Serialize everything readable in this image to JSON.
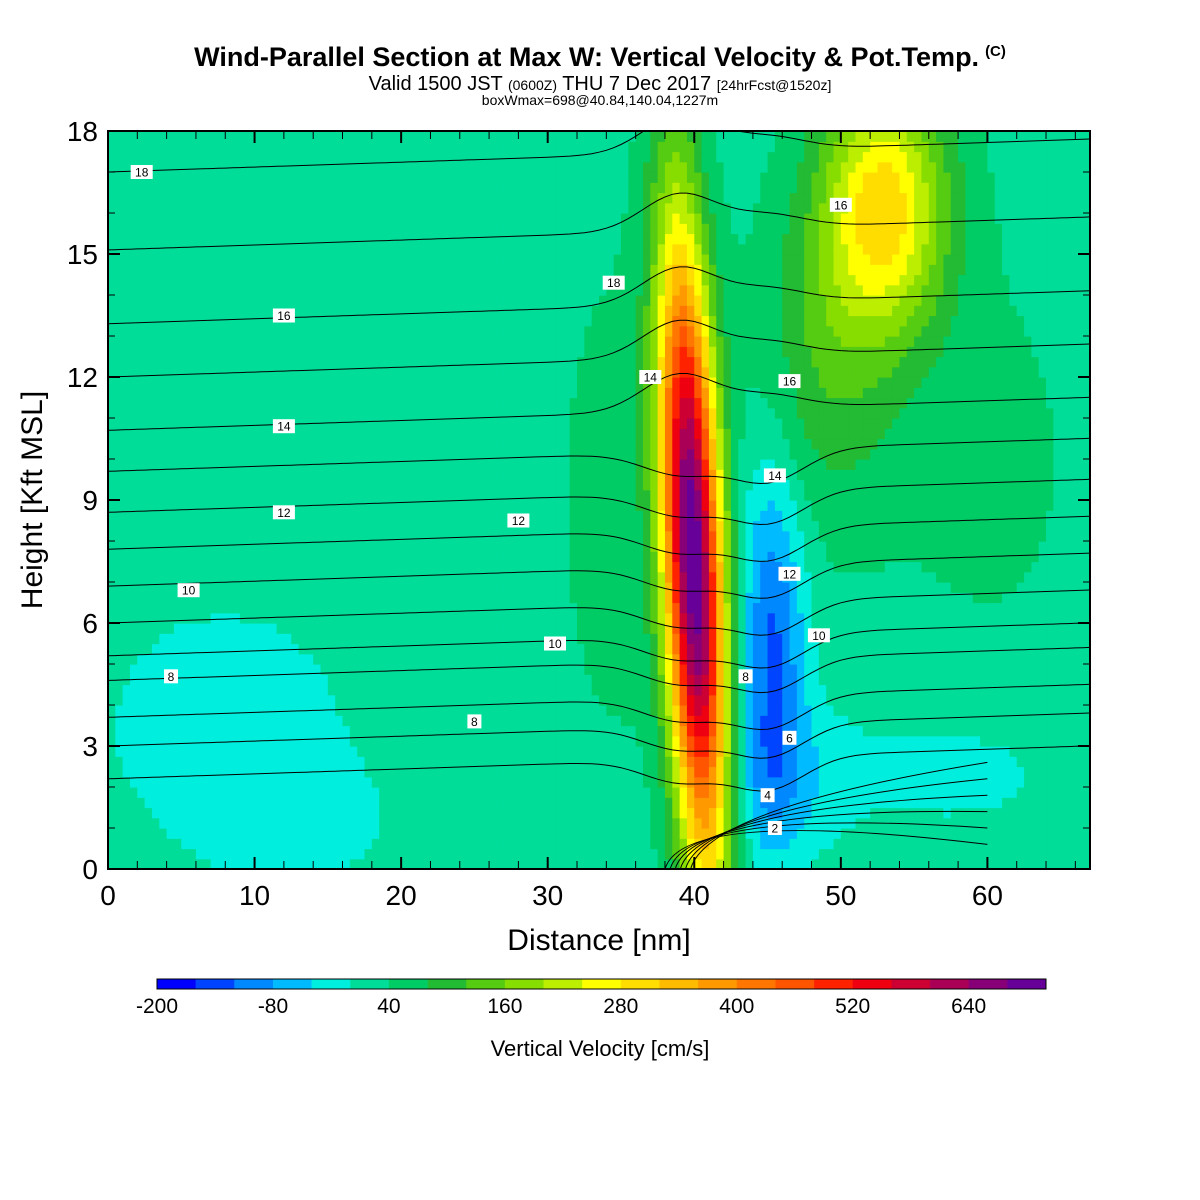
{
  "header": {
    "title": "Wind-Parallel Section at Max W: Vertical Velocity & Pot.Temp.",
    "title_mark": "(C)",
    "subtitle_a": "Valid 1500 JST",
    "subtitle_b": "(0600Z)",
    "subtitle_c": "THU 7 Dec 2017",
    "subtitle_d": "[24hrFcst@1520z]",
    "subtitle2": "boxWmax=698@40.84,140.04,1227m"
  },
  "chart_data": {
    "type": "contour",
    "xlabel": "Distance [nm]",
    "ylabel": "Height [Kft MSL]",
    "xlim": [
      0,
      67
    ],
    "ylim": [
      0,
      18
    ],
    "xticks": [
      0,
      10,
      20,
      30,
      40,
      50,
      60
    ],
    "yticks": [
      0,
      3,
      6,
      9,
      12,
      15,
      18
    ],
    "grid": false,
    "colorbar": {
      "label": "Vertical Velocity [cm/s]",
      "levels": [
        -200,
        -160,
        -120,
        -80,
        -40,
        0,
        40,
        80,
        120,
        160,
        200,
        240,
        280,
        320,
        360,
        400,
        440,
        480,
        520,
        560,
        600,
        640,
        680,
        720
      ],
      "tick_labels": [
        "-200",
        "-80",
        "40",
        "160",
        "280",
        "400",
        "520",
        "640"
      ],
      "colors": [
        "#0000ff",
        "#0044ff",
        "#0088ff",
        "#00bbff",
        "#00eedd",
        "#00dd99",
        "#00cc66",
        "#22bb33",
        "#55cc11",
        "#88dd00",
        "#bbee00",
        "#ffff00",
        "#ffdd00",
        "#ffbb00",
        "#ff9900",
        "#ff7700",
        "#ff5500",
        "#ff2200",
        "#ee0011",
        "#cc0033",
        "#aa0055",
        "#880077",
        "#660099"
      ]
    },
    "background_value_range": [
      0,
      40
    ],
    "features": [
      {
        "name": "updraft_core",
        "x": 39.5,
        "y": 7.5,
        "max_w": 698
      },
      {
        "name": "downdraft_core",
        "x": 45.5,
        "y": 5.5,
        "min_w": -120
      },
      {
        "name": "upper_updraft",
        "x": 53,
        "y": 16,
        "max_w": 280
      }
    ],
    "isentropes_label": "Pot.Temp. (C)",
    "isentrope_labels": [
      {
        "text": "18",
        "x": 2.3,
        "y": 17.0
      },
      {
        "text": "16",
        "x": 12,
        "y": 13.5
      },
      {
        "text": "14",
        "x": 12,
        "y": 10.8
      },
      {
        "text": "12",
        "x": 12,
        "y": 8.7
      },
      {
        "text": "10",
        "x": 5.5,
        "y": 6.8
      },
      {
        "text": "8",
        "x": 4.3,
        "y": 4.7
      },
      {
        "text": "18",
        "x": 34.5,
        "y": 14.3
      },
      {
        "text": "16",
        "x": 50,
        "y": 16.2
      },
      {
        "text": "14",
        "x": 37,
        "y": 12.0
      },
      {
        "text": "16",
        "x": 46.5,
        "y": 11.9
      },
      {
        "text": "12",
        "x": 28,
        "y": 8.5
      },
      {
        "text": "14",
        "x": 45.5,
        "y": 9.6
      },
      {
        "text": "12",
        "x": 46.5,
        "y": 7.2
      },
      {
        "text": "10",
        "x": 30.5,
        "y": 5.5
      },
      {
        "text": "10",
        "x": 48.5,
        "y": 5.7
      },
      {
        "text": "8",
        "x": 25,
        "y": 3.6
      },
      {
        "text": "8",
        "x": 43.5,
        "y": 4.7
      },
      {
        "text": "6",
        "x": 46.5,
        "y": 3.2
      },
      {
        "text": "4",
        "x": 45,
        "y": 1.8
      },
      {
        "text": "2",
        "x": 45.5,
        "y": 1.0
      }
    ]
  }
}
